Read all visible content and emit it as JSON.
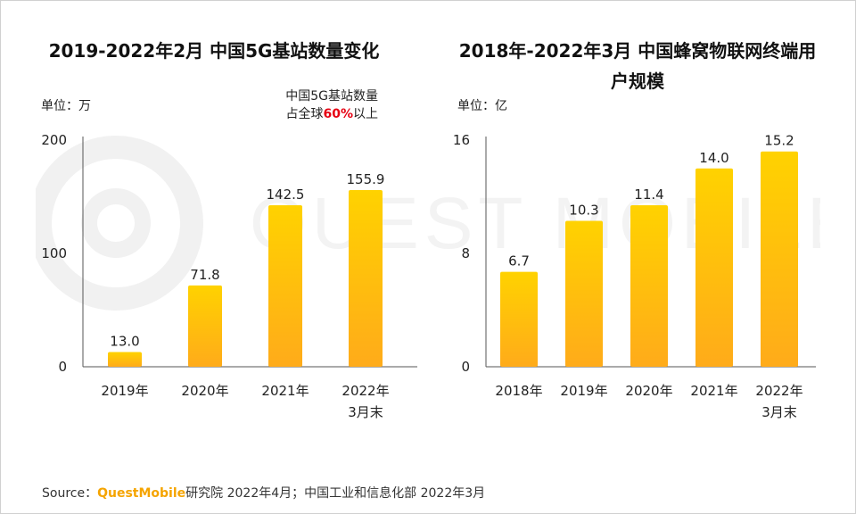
{
  "page": {
    "source_label": "Source：",
    "source_brand": "QuestMobile",
    "source_text": "研究院 2022年4月；中国工业和信息化部 2022年3月",
    "watermark": "QUEST MOBILE"
  },
  "colors": {
    "bar_top": "#ffd200",
    "bar_bottom": "#ffab1a",
    "highlight": "#e60012",
    "brand": "#f5a400"
  },
  "chart_data": [
    {
      "type": "bar",
      "title": "2019-2022年2月 中国5G基站数量变化",
      "unit": "单位：万",
      "note_line1": "中国5G基站数量",
      "note_line2_pre": "占全球",
      "note_line2_hl": "60%",
      "note_line2_post": "以上",
      "categories": [
        "2019年",
        "2020年",
        "2021年",
        "2022年\n3月末"
      ],
      "values": [
        13.0,
        71.8,
        142.5,
        155.9
      ],
      "value_labels": [
        "13.0",
        "71.8",
        "142.5",
        "155.9"
      ],
      "yticks": [
        0,
        100,
        200
      ],
      "ylim": [
        0,
        200
      ]
    },
    {
      "type": "bar",
      "title": "2018年-2022年3月 中国蜂窝物联网终端用户规模",
      "unit": "单位：亿",
      "categories": [
        "2018年",
        "2019年",
        "2020年",
        "2021年",
        "2022年\n3月末"
      ],
      "values": [
        6.7,
        10.3,
        11.4,
        14.0,
        15.2
      ],
      "value_labels": [
        "6.7",
        "10.3",
        "11.4",
        "14.0",
        "15.2"
      ],
      "yticks": [
        0,
        8,
        16
      ],
      "ylim": [
        0,
        16
      ]
    }
  ]
}
